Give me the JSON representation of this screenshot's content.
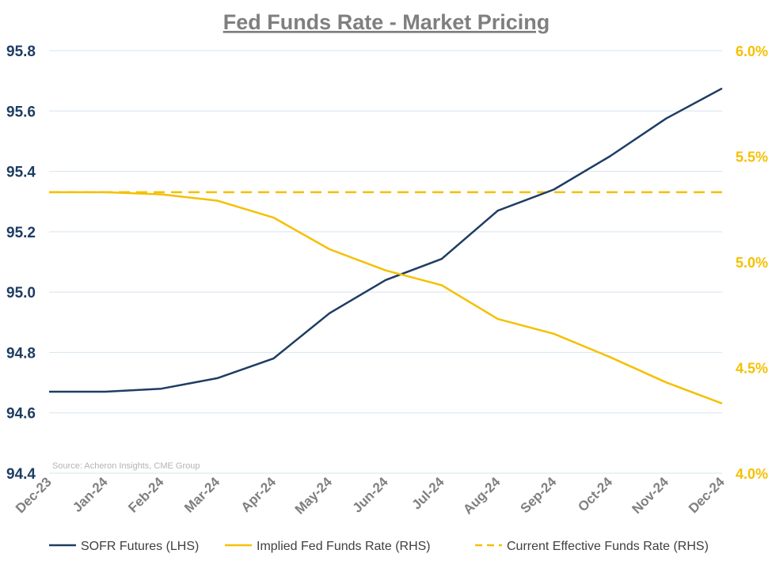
{
  "chart_data": {
    "type": "line",
    "title": "Fed Funds Rate - Market Pricing",
    "source": "Source: Acheron Insights, CME Group",
    "categories": [
      "Dec-23",
      "Jan-24",
      "Feb-24",
      "Mar-24",
      "Apr-24",
      "May-24",
      "Jun-24",
      "Jul-24",
      "Aug-24",
      "Sep-24",
      "Oct-24",
      "Nov-24",
      "Dec-24"
    ],
    "left_axis": {
      "ylim": [
        94.4,
        95.8
      ],
      "ticks": [
        "94.4",
        "94.6",
        "94.8",
        "95.0",
        "95.2",
        "95.4",
        "95.6",
        "95.8"
      ],
      "tick_values": [
        94.4,
        94.6,
        94.8,
        95.0,
        95.2,
        95.4,
        95.6,
        95.8
      ]
    },
    "right_axis": {
      "ylim": [
        4.0,
        6.0
      ],
      "ticks": [
        "4.0%",
        "4.5%",
        "5.0%",
        "5.5%",
        "6.0%"
      ],
      "tick_values": [
        4.0,
        4.5,
        5.0,
        5.5,
        6.0
      ]
    },
    "grid": true,
    "legend_position": "bottom",
    "series": [
      {
        "name": "SOFR Futures (LHS)",
        "axis": "left",
        "color": "#1f3d63",
        "style": "solid",
        "values": [
          94.67,
          94.67,
          94.68,
          94.715,
          94.78,
          94.93,
          95.04,
          95.11,
          95.27,
          95.34,
          95.45,
          95.575,
          95.675
        ]
      },
      {
        "name": "Implied Fed Funds Rate (RHS)",
        "axis": "right",
        "color": "#f5c000",
        "style": "solid",
        "values": [
          5.33,
          5.33,
          5.32,
          5.29,
          5.21,
          5.06,
          4.96,
          4.89,
          4.73,
          4.66,
          4.55,
          4.43,
          4.33
        ]
      },
      {
        "name": "Current Effective Funds Rate (RHS)",
        "axis": "right",
        "color": "#f5c000",
        "style": "dashed",
        "values": [
          5.33,
          5.33,
          5.33,
          5.33,
          5.33,
          5.33,
          5.33,
          5.33,
          5.33,
          5.33,
          5.33,
          5.33,
          5.33
        ]
      }
    ]
  }
}
